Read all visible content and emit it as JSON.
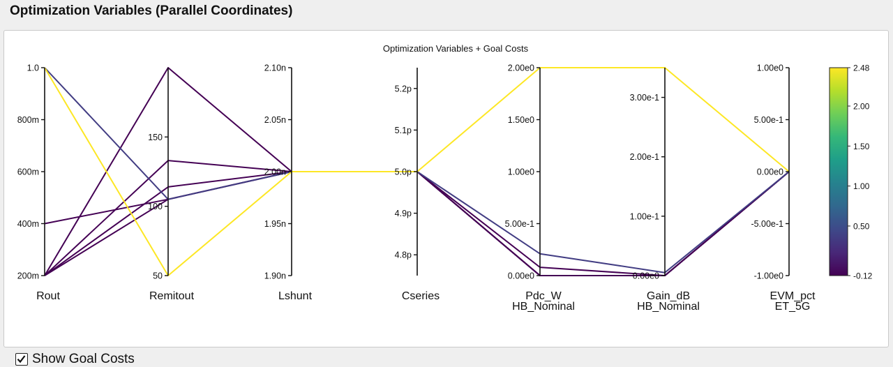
{
  "page": {
    "title": "Optimization Variables (Parallel Coordinates)"
  },
  "footer": {
    "show_goal_costs_label": "Show Goal Costs",
    "show_goal_costs_checked": true
  },
  "chart_data": {
    "type": "parallel_coordinates",
    "title": "Optimization Variables + Goal Costs",
    "axes": [
      {
        "name": "Rout",
        "label": [
          "Rout"
        ],
        "range": [
          0.2,
          1.0
        ],
        "ticks": [
          {
            "v": 0.2,
            "t": "200m"
          },
          {
            "v": 0.4,
            "t": "400m"
          },
          {
            "v": 0.6,
            "t": "600m"
          },
          {
            "v": 0.8,
            "t": "800m"
          },
          {
            "v": 1.0,
            "t": "1.0"
          }
        ]
      },
      {
        "name": "Remitout",
        "label": [
          "Remitout"
        ],
        "range": [
          50,
          200
        ],
        "ticks": [
          {
            "v": 50,
            "t": "50"
          },
          {
            "v": 100,
            "t": "100"
          },
          {
            "v": 150,
            "t": "150"
          }
        ]
      },
      {
        "name": "Lshunt",
        "label": [
          "Lshunt"
        ],
        "range": [
          1.9,
          2.1
        ],
        "ticks": [
          {
            "v": 1.9,
            "t": "1.90n"
          },
          {
            "v": 1.95,
            "t": "1.95n"
          },
          {
            "v": 2.0,
            "t": "2.00n"
          },
          {
            "v": 2.05,
            "t": "2.05n"
          },
          {
            "v": 2.1,
            "t": "2.10n"
          }
        ]
      },
      {
        "name": "Cseries",
        "label": [
          "Cseries"
        ],
        "range": [
          4.75,
          5.25
        ],
        "ticks": [
          {
            "v": 4.8,
            "t": "4.8p"
          },
          {
            "v": 4.9,
            "t": "4.9p"
          },
          {
            "v": 5.0,
            "t": "5.0p"
          },
          {
            "v": 5.1,
            "t": "5.1p"
          },
          {
            "v": 5.2,
            "t": "5.2p"
          }
        ]
      },
      {
        "name": "Pdc_W",
        "label": [
          "Pdc_W",
          "HB_Nominal"
        ],
        "range": [
          0,
          2.0
        ],
        "ticks": [
          {
            "v": 0,
            "t": "0.00e0"
          },
          {
            "v": 0.5,
            "t": "5.00e-1"
          },
          {
            "v": 1.0,
            "t": "1.00e0"
          },
          {
            "v": 1.5,
            "t": "1.50e0"
          },
          {
            "v": 2.0,
            "t": "2.00e0"
          }
        ]
      },
      {
        "name": "Gain_dB",
        "label": [
          "Gain_dB",
          "HB_Nominal"
        ],
        "range": [
          0,
          0.35
        ],
        "ticks": [
          {
            "v": 0,
            "t": "0.00e0"
          },
          {
            "v": 0.1,
            "t": "1.00e-1"
          },
          {
            "v": 0.2,
            "t": "2.00e-1"
          },
          {
            "v": 0.3,
            "t": "3.00e-1"
          }
        ]
      },
      {
        "name": "EVM_pct",
        "label": [
          "EVM_pct",
          "ET_5G"
        ],
        "range": [
          -1.0,
          1.0
        ],
        "ticks": [
          {
            "v": -1.0,
            "t": "-1.00e0"
          },
          {
            "v": -0.5,
            "t": "-5.00e-1"
          },
          {
            "v": 0,
            "t": "0.00e0"
          },
          {
            "v": 0.5,
            "t": "5.00e-1"
          },
          {
            "v": 1.0,
            "t": "1.00e0"
          }
        ]
      }
    ],
    "series": [
      {
        "cost": 2.48,
        "values": [
          1.0,
          50,
          2.0,
          5.0,
          2.0,
          0.35,
          0
        ]
      },
      {
        "cost": 0.35,
        "values": [
          1.0,
          105,
          2.0,
          5.0,
          0.21,
          0.005,
          0
        ]
      },
      {
        "cost": -0.12,
        "values": [
          0.4,
          105,
          2.0,
          5.0,
          0.08,
          0.0,
          0
        ]
      },
      {
        "cost": -0.12,
        "values": [
          0.2,
          200,
          2.0,
          5.0,
          0.0,
          0.0,
          0
        ]
      },
      {
        "cost": -0.12,
        "values": [
          0.2,
          133,
          2.0,
          5.0,
          0.0,
          0.0,
          0
        ]
      },
      {
        "cost": -0.12,
        "values": [
          0.2,
          114,
          2.0,
          5.0,
          0.0,
          0.0,
          0
        ]
      },
      {
        "cost": -0.12,
        "values": [
          0.2,
          105,
          2.0,
          5.0,
          0.0,
          0.0,
          0
        ]
      }
    ],
    "colorbar": {
      "min": -0.12,
      "max": 2.48,
      "ticks": [
        {
          "v": 2.48,
          "t": "2.48"
        },
        {
          "v": 2.0,
          "t": "2.00"
        },
        {
          "v": 1.5,
          "t": "1.50"
        },
        {
          "v": 1.0,
          "t": "1.00"
        },
        {
          "v": 0.5,
          "t": "0.50"
        },
        {
          "v": -0.12,
          "t": "-0.12"
        }
      ],
      "colormap": [
        "#440154",
        "#482878",
        "#3e4989",
        "#31688e",
        "#26828e",
        "#1f9e89",
        "#35b779",
        "#6ece58",
        "#b5de2b",
        "#fde725"
      ]
    }
  }
}
